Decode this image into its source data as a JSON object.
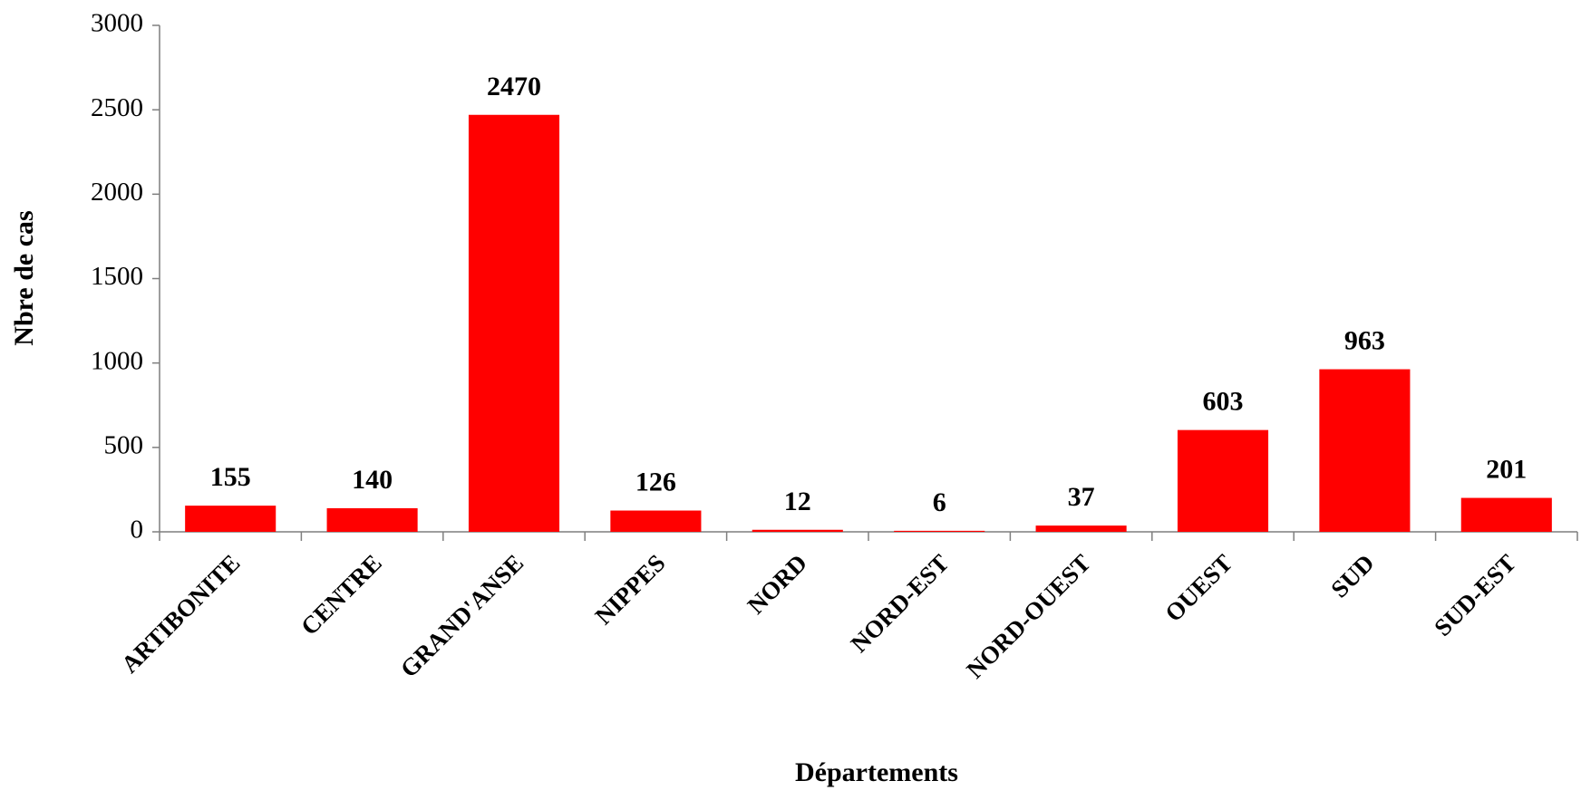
{
  "chart_data": {
    "type": "bar",
    "categories": [
      "ARTIBONITE",
      "CENTRE",
      "GRAND'ANSE",
      "NIPPES",
      "NORD",
      "NORD-EST",
      "NORD-OUEST",
      "OUEST",
      "SUD",
      "SUD-EST"
    ],
    "values": [
      155,
      140,
      2470,
      126,
      12,
      6,
      37,
      603,
      963,
      201
    ],
    "color": "#ff0000",
    "ylim": [
      0,
      3000
    ],
    "yticks": [
      0,
      500,
      1000,
      1500,
      2000,
      2500,
      3000
    ],
    "xlabel": "Départements",
    "ylabel": "Nbre de cas",
    "grid": false
  }
}
